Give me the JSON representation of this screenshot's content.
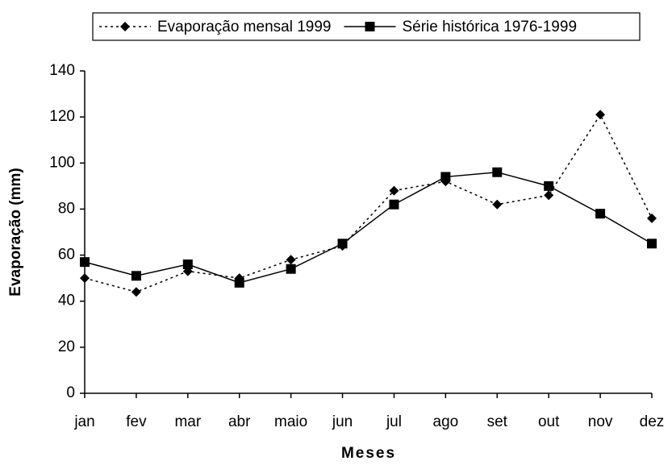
{
  "chart_data": {
    "type": "line",
    "x_label": "Meses",
    "y_label": "Evaporação (mm)",
    "categories": [
      "jan",
      "fev",
      "mar",
      "abr",
      "maio",
      "jun",
      "jul",
      "ago",
      "set",
      "out",
      "nov",
      "dez"
    ],
    "series": [
      {
        "name": "Evaporação mensal 1999",
        "color": "#000000",
        "line_style": "dotted",
        "marker": "diamond",
        "values": [
          50,
          44,
          53,
          50,
          58,
          64,
          88,
          92,
          82,
          86,
          121,
          76
        ]
      },
      {
        "name": "Série histórica 1976-1999",
        "color": "#000000",
        "line_style": "solid",
        "marker": "square",
        "values": [
          57,
          51,
          56,
          48,
          54,
          65,
          82,
          94,
          96,
          90,
          78,
          65
        ]
      }
    ],
    "ylim": [
      0,
      140
    ],
    "yticks": [
      0,
      20,
      40,
      60,
      80,
      100,
      120,
      140
    ],
    "grid": false,
    "legend": "top"
  }
}
